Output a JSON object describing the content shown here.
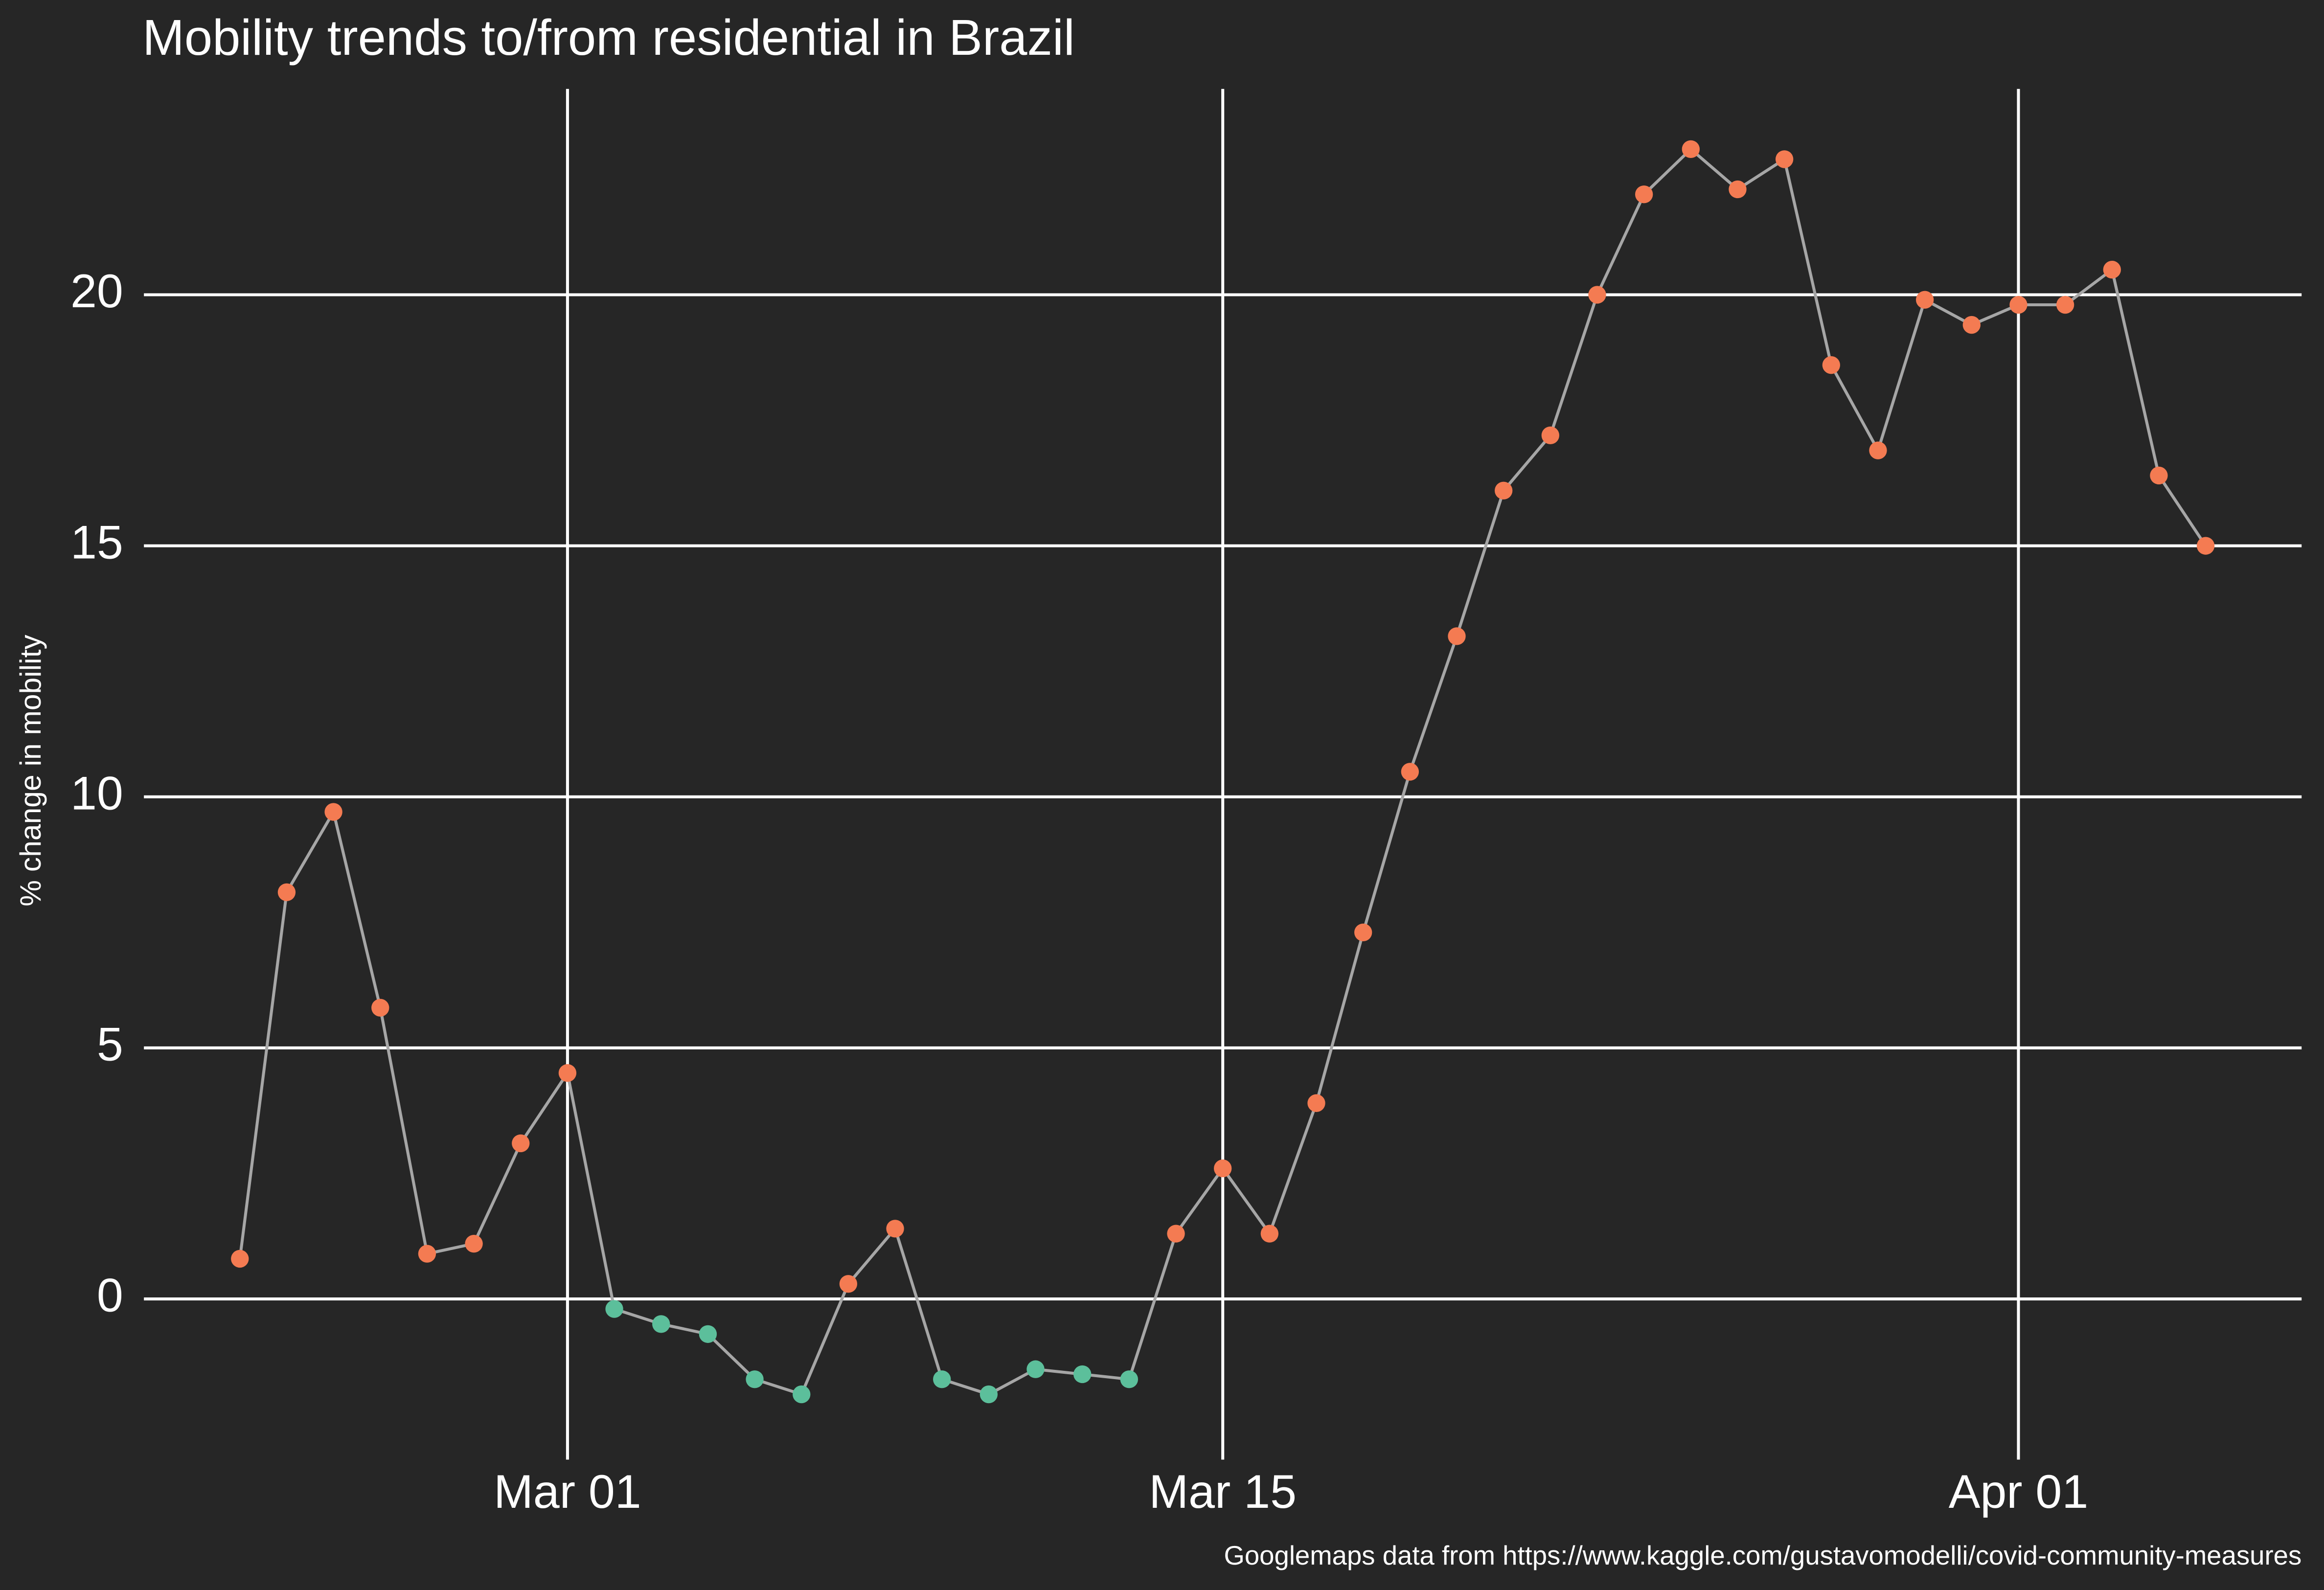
{
  "chart_data": {
    "type": "line",
    "title": "Mobility trends to/from residential in Brazil",
    "y_label": "% change in mobility",
    "caption": "Googlemaps data from https://www.kaggle.com/gustavomodelli/covid-community-measures",
    "x": [
      "Feb 23",
      "Feb 24",
      "Feb 25",
      "Feb 26",
      "Feb 27",
      "Feb 28",
      "Feb 29",
      "Mar 01",
      "Mar 02",
      "Mar 03",
      "Mar 04",
      "Mar 05",
      "Mar 06",
      "Mar 07",
      "Mar 08",
      "Mar 09",
      "Mar 10",
      "Mar 11",
      "Mar 12",
      "Mar 13",
      "Mar 14",
      "Mar 15",
      "Mar 16",
      "Mar 17",
      "Mar 18",
      "Mar 19",
      "Mar 20",
      "Mar 21",
      "Mar 22",
      "Mar 23",
      "Mar 24",
      "Mar 25",
      "Mar 26",
      "Mar 27",
      "Mar 28",
      "Mar 29",
      "Mar 30",
      "Mar 31",
      "Apr 01",
      "Apr 02",
      "Apr 03",
      "Apr 04",
      "Apr 05"
    ],
    "values": [
      0.8,
      8.1,
      9.7,
      5.8,
      0.9,
      1.1,
      3.1,
      4.5,
      -0.2,
      -0.5,
      -0.7,
      -1.6,
      -1.9,
      0.3,
      1.4,
      -1.6,
      -1.9,
      -1.4,
      -1.5,
      -1.6,
      1.3,
      2.6,
      1.3,
      3.9,
      7.3,
      10.5,
      13.2,
      16.1,
      17.2,
      20.0,
      22.0,
      22.9,
      22.1,
      22.7,
      18.6,
      16.9,
      19.9,
      19.4,
      19.8,
      19.8,
      20.5,
      16.4,
      15.0
    ],
    "line_color": "#a6a6a6",
    "positive_color": "#f47b52",
    "negative_color": "#5cbf9b",
    "ylim": [
      -3.2,
      24.1
    ],
    "yticks": [
      0,
      5,
      10,
      15,
      20
    ],
    "xticks": [
      "Mar 01",
      "Mar 15",
      "Apr 01"
    ],
    "grid": true
  }
}
